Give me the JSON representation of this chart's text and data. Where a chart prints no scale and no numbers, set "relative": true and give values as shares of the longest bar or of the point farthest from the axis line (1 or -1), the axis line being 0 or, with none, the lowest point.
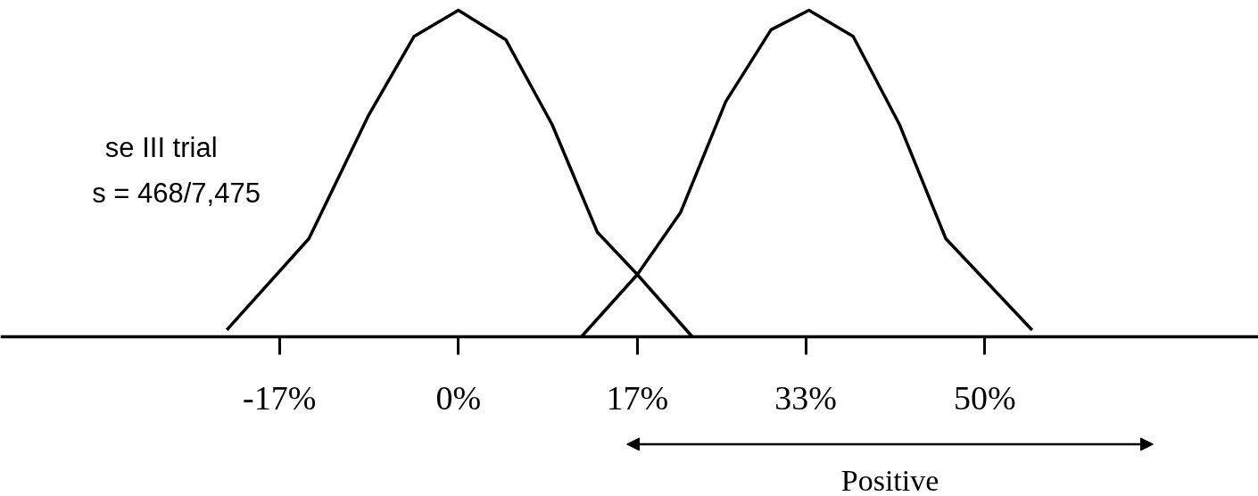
{
  "chart_data": {
    "type": "line",
    "relative": true,
    "series": [
      {
        "color": "#000000",
        "x": [
          -22,
          -14.2,
          -8.5,
          -4.2,
          0,
          4.5,
          8.9,
          13.2,
          17,
          22.2
        ],
        "values": [
          0.02,
          0.3,
          0.68,
          0.92,
          1,
          0.91,
          0.65,
          0.32,
          0.19,
          0
        ]
      },
      {
        "color": "#000000",
        "x": [
          11.7,
          17,
          21.1,
          25.4,
          29.7,
          33.3,
          37.5,
          41.9,
          46.3,
          54.5
        ],
        "values": [
          0,
          0.19,
          0.38,
          0.72,
          0.94,
          1,
          0.92,
          0.65,
          0.3,
          0.02
        ]
      }
    ],
    "xlim": [
      -43.5,
      76
    ],
    "xticks": [
      {
        "value": -17,
        "label": "-17%"
      },
      {
        "value": 0,
        "label": "0%"
      },
      {
        "value": 17,
        "label": "17%"
      },
      {
        "value": 33,
        "label": "33%"
      },
      {
        "value": 50,
        "label": "50%"
      }
    ],
    "annotations": [
      "se III trial",
      "s = 468/7,475",
      "Positive"
    ],
    "line_style": "solid"
  }
}
